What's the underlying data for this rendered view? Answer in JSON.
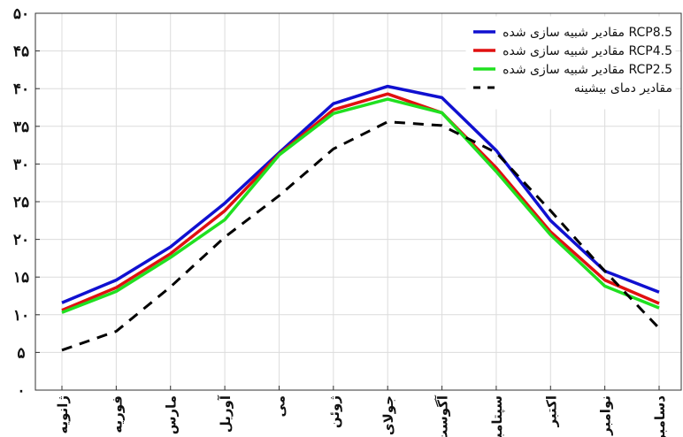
{
  "chart_data": {
    "type": "line",
    "categories": [
      "ژانویه",
      "فوریه",
      "مارس",
      "آوریل",
      "می",
      "ژوئن",
      "جولای",
      "آگوست",
      "سپتامبر",
      "اکتبر",
      "نوامبر",
      "دسامبر"
    ],
    "ytick_labels": [
      "۰",
      "۵",
      "۱۰",
      "۱۵",
      "۲۰",
      "۲۵",
      "۳۰",
      "۳۵",
      "۴۰",
      "۴۵",
      "۵۰"
    ],
    "ylim": [
      0,
      50
    ],
    "grid": true,
    "legend_position": "top-right",
    "series": [
      {
        "name": "مقادیر شبیه سازی شده RCP8.5",
        "color": "#1010d0",
        "dash": false,
        "values": [
          11.6,
          14.6,
          19.0,
          24.8,
          31.5,
          38.0,
          40.3,
          38.8,
          31.8,
          22.5,
          15.8,
          13.0
        ]
      },
      {
        "name": "مقادیر شبیه سازی شده RCP4.5",
        "color": "#e01010",
        "dash": false,
        "values": [
          10.6,
          13.6,
          18.1,
          23.8,
          31.3,
          37.2,
          39.3,
          36.8,
          29.5,
          21.0,
          14.6,
          11.5
        ]
      },
      {
        "name": "مقادیر شبیه سازی شده RCP2.5",
        "color": "#20e020",
        "dash": false,
        "values": [
          10.3,
          13.1,
          17.6,
          22.6,
          31.2,
          36.7,
          38.6,
          36.8,
          29.0,
          20.6,
          13.8,
          10.9
        ]
      },
      {
        "name": "مقادیر دمای بیشینه",
        "color": "#000000",
        "dash": true,
        "values": [
          5.3,
          7.8,
          13.7,
          20.3,
          25.8,
          32.0,
          35.6,
          35.1,
          31.5,
          23.8,
          15.8,
          8.2
        ]
      }
    ]
  }
}
